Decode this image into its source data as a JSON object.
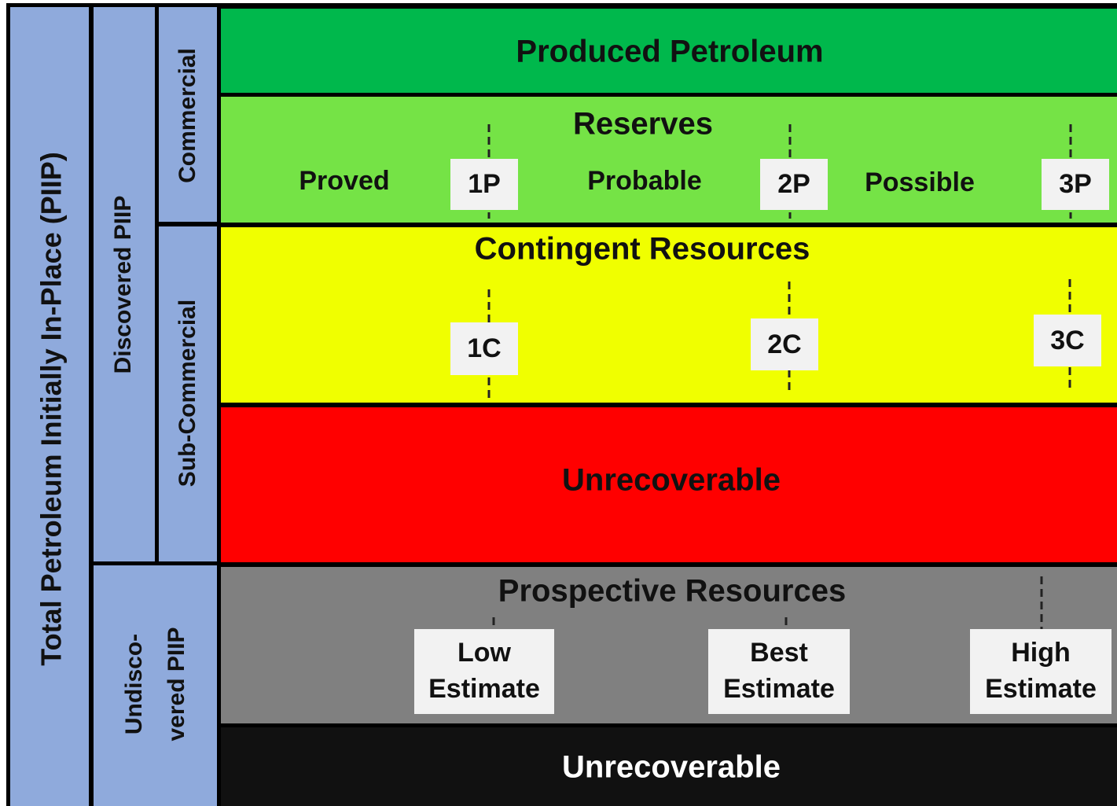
{
  "left": {
    "total": "Total Petroleum Initially In-Place (PIIP)",
    "discovered": "Discovered PIIP",
    "undiscovered": [
      "Undisco-",
      "vered PIIP"
    ],
    "commercial": "Commercial",
    "sub_commercial": "Sub-Commercial"
  },
  "rows": {
    "produced": "Produced Petroleum",
    "reserves": {
      "title": "Reserves",
      "labels": [
        "Proved",
        "Probable",
        "Possible"
      ],
      "boxes": [
        "1P",
        "2P",
        "3P"
      ]
    },
    "contingent": {
      "title": "Contingent Resources",
      "boxes": [
        "1C",
        "2C",
        "3C"
      ]
    },
    "unrecoverable_discovered": "Unrecoverable",
    "prospective": {
      "title": "Prospective Resources",
      "boxes": [
        [
          "Low",
          "Estimate"
        ],
        [
          "Best",
          "Estimate"
        ],
        [
          "High",
          "Estimate"
        ]
      ]
    },
    "unrecoverable_undiscovered": "Unrecoverable"
  }
}
